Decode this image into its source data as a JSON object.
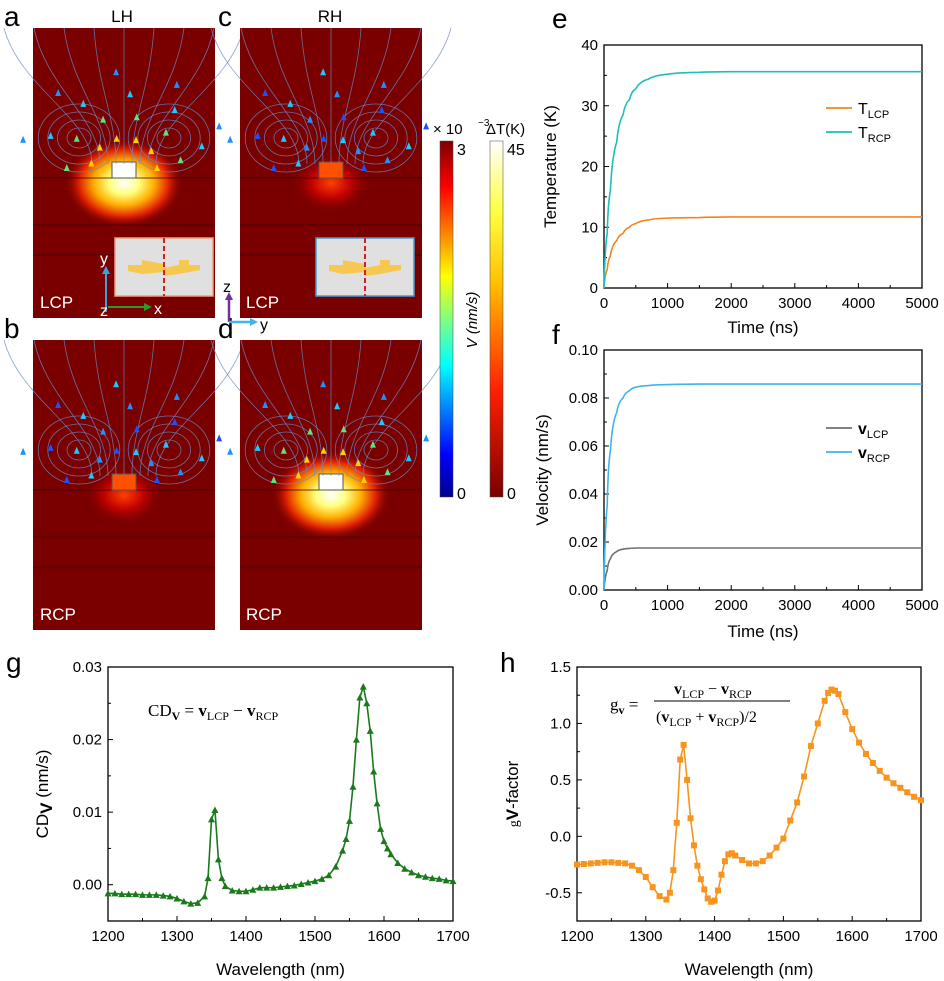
{
  "panels": {
    "a": {
      "letter": "a",
      "column_title": "LH",
      "pol": "LCP"
    },
    "b": {
      "letter": "b",
      "pol": "RCP"
    },
    "c": {
      "letter": "c",
      "column_title": "RH",
      "pol": "LCP"
    },
    "d": {
      "letter": "d",
      "pol": "RCP"
    },
    "axes_a": {
      "y": "y",
      "z": "z",
      "x": "x"
    },
    "axes_c": {
      "z": "z",
      "y": "y"
    }
  },
  "colorbars": {
    "velocity": {
      "scale": "× 10",
      "exp": "−3",
      "max": "3",
      "min": "0",
      "label": "V (nm/s)"
    },
    "temperature": {
      "title": "ΔT(K)",
      "max": "45",
      "min": "0"
    }
  },
  "colors": {
    "lcp_e": "#f28522",
    "rcp_e": "#1fbfb8",
    "lcp_f": "#707070",
    "rcp_f": "#3fb4ea",
    "g": "#1a7a1a",
    "h": "#f7941d",
    "field_bg": "#7a0000"
  },
  "chart_data": [
    {
      "id": "e",
      "letter": "e",
      "type": "line",
      "xlabel": "Time (ns)",
      "ylabel": "Temperature (K)",
      "xlim": [
        0,
        5000
      ],
      "ylim": [
        0,
        40
      ],
      "xticks": [
        "0",
        "1000",
        "2000",
        "3000",
        "4000",
        "5000"
      ],
      "yticks": [
        "0",
        "10",
        "20",
        "30",
        "40"
      ],
      "legend_position": "center-right",
      "x": [
        0,
        50,
        100,
        200,
        300,
        400,
        500,
        700,
        1000,
        1500,
        2000,
        3000,
        4000,
        5000
      ],
      "series": [
        {
          "name": "T",
          "sub": "LCP",
          "values": [
            0,
            3,
            5.3,
            7.8,
            9,
            10,
            10.6,
            11.2,
            11.5,
            11.6,
            11.7,
            11.7,
            11.7,
            11.7
          ]
        },
        {
          "name": "T",
          "sub": "RCP",
          "values": [
            0,
            9,
            16,
            24,
            28.5,
            31,
            32.8,
            34.4,
            35.2,
            35.5,
            35.6,
            35.6,
            35.6,
            35.6
          ]
        }
      ]
    },
    {
      "id": "f",
      "letter": "f",
      "type": "line",
      "xlabel": "Time (ns)",
      "ylabel": "Velocity (nm/s)",
      "xlim": [
        0,
        5000
      ],
      "ylim": [
        0,
        0.1
      ],
      "xticks": [
        "0",
        "1000",
        "2000",
        "3000",
        "4000",
        "5000"
      ],
      "yticks": [
        "0.00",
        "0.02",
        "0.04",
        "0.06",
        "0.08",
        "0.10"
      ],
      "legend_position": "center-right",
      "x": [
        0,
        50,
        100,
        200,
        300,
        400,
        500,
        700,
        1000,
        1500,
        2000,
        3000,
        4000,
        5000
      ],
      "series": [
        {
          "name": "v",
          "sub": "LCP",
          "values": [
            0,
            0.008,
            0.013,
            0.016,
            0.017,
            0.0173,
            0.0175,
            0.0175,
            0.0175,
            0.0175,
            0.0175,
            0.0175,
            0.0175,
            0.0175
          ]
        },
        {
          "name": "v",
          "sub": "RCP",
          "values": [
            0,
            0.035,
            0.058,
            0.074,
            0.08,
            0.083,
            0.0845,
            0.0852,
            0.0856,
            0.0858,
            0.0858,
            0.0858,
            0.0858,
            0.0858
          ]
        }
      ]
    },
    {
      "id": "g",
      "letter": "g",
      "type": "line",
      "xlabel": "Wavelength (nm)",
      "ylabel": "CD",
      "ylabel_sub": "V",
      "ylabel_unit": " (nm/s)",
      "xlim": [
        1200,
        1700
      ],
      "ylim": [
        -0.005,
        0.03
      ],
      "xticks": [
        "1200",
        "1300",
        "1400",
        "1500",
        "1600",
        "1700"
      ],
      "yticks": [
        "0.00",
        "0.01",
        "0.02",
        "0.03"
      ],
      "formula": {
        "lhs": "CD",
        "lhs_sub": "V",
        "eq": " = ",
        "a": "v",
        "a_sub": "LCP",
        "minus": " − ",
        "b": "v",
        "b_sub": "RCP"
      },
      "x": [
        1200,
        1210,
        1220,
        1230,
        1240,
        1250,
        1260,
        1270,
        1280,
        1290,
        1300,
        1310,
        1320,
        1330,
        1340,
        1345,
        1350,
        1355,
        1360,
        1365,
        1370,
        1380,
        1390,
        1400,
        1410,
        1420,
        1430,
        1440,
        1450,
        1460,
        1470,
        1480,
        1490,
        1500,
        1510,
        1520,
        1530,
        1540,
        1545,
        1550,
        1555,
        1560,
        1565,
        1570,
        1575,
        1580,
        1585,
        1590,
        1595,
        1600,
        1605,
        1610,
        1620,
        1630,
        1640,
        1650,
        1660,
        1670,
        1680,
        1690,
        1700
      ],
      "series": [
        {
          "name": "CDv",
          "values": [
            -0.0012,
            -0.0012,
            -0.0013,
            -0.0013,
            -0.0013,
            -0.0014,
            -0.0014,
            -0.0014,
            -0.0015,
            -0.0016,
            -0.0019,
            -0.0023,
            -0.0026,
            -0.0025,
            -0.0016,
            0.0009,
            0.009,
            0.0103,
            0.0035,
            0.0009,
            -0.0002,
            -0.0008,
            -0.0009,
            -0.0009,
            -0.0007,
            -0.0004,
            -0.0004,
            -0.0004,
            -0.0003,
            -0.0002,
            -0.0001,
            0.0001,
            0.0003,
            0.0005,
            0.0008,
            0.0013,
            0.0025,
            0.0047,
            0.0063,
            0.0088,
            0.0135,
            0.02,
            0.0258,
            0.0273,
            0.025,
            0.0212,
            0.0156,
            0.0112,
            0.0077,
            0.006,
            0.005,
            0.0042,
            0.003,
            0.0022,
            0.0017,
            0.0013,
            0.0011,
            0.0009,
            0.0008,
            0.0006,
            0.0005
          ]
        }
      ]
    },
    {
      "id": "h",
      "letter": "h",
      "type": "line",
      "xlabel": "Wavelength (nm)",
      "ylabel": "g",
      "ylabel_sub": "V",
      "ylabel_unit": "-factor",
      "xlim": [
        1200,
        1700
      ],
      "ylim": [
        -0.75,
        1.5
      ],
      "xticks": [
        "1200",
        "1300",
        "1400",
        "1500",
        "1600",
        "1700"
      ],
      "yticks": [
        "-0.5",
        "0.0",
        "0.5",
        "1.0",
        "1.5"
      ],
      "formula": {
        "lhs": "g",
        "lhs_sub": "v",
        "eq": " = ",
        "num_a": "v",
        "num_a_sub": "LCP",
        "num_minus": " − ",
        "num_b": "v",
        "num_b_sub": "RCP",
        "den_open": "(",
        "den_a": "v",
        "den_a_sub": "LCP",
        "den_plus": " + ",
        "den_b": "v",
        "den_b_sub": "RCP",
        "den_close": ")/2"
      },
      "x": [
        1200,
        1210,
        1220,
        1230,
        1240,
        1250,
        1260,
        1270,
        1280,
        1290,
        1300,
        1310,
        1320,
        1330,
        1335,
        1340,
        1345,
        1350,
        1355,
        1360,
        1365,
        1370,
        1375,
        1380,
        1385,
        1390,
        1395,
        1400,
        1405,
        1410,
        1415,
        1420,
        1425,
        1430,
        1440,
        1450,
        1460,
        1470,
        1480,
        1490,
        1500,
        1510,
        1520,
        1530,
        1540,
        1550,
        1560,
        1565,
        1570,
        1575,
        1580,
        1590,
        1600,
        1610,
        1620,
        1630,
        1640,
        1650,
        1660,
        1670,
        1680,
        1690,
        1700
      ],
      "series": [
        {
          "name": "gv",
          "values": [
            -0.25,
            -0.245,
            -0.24,
            -0.235,
            -0.23,
            -0.23,
            -0.235,
            -0.24,
            -0.26,
            -0.3,
            -0.36,
            -0.45,
            -0.53,
            -0.56,
            -0.5,
            -0.3,
            0.12,
            0.68,
            0.81,
            0.5,
            0.16,
            -0.08,
            -0.26,
            -0.38,
            -0.47,
            -0.55,
            -0.58,
            -0.57,
            -0.48,
            -0.34,
            -0.22,
            -0.16,
            -0.15,
            -0.17,
            -0.21,
            -0.24,
            -0.24,
            -0.22,
            -0.17,
            -0.1,
            -0.02,
            0.14,
            0.3,
            0.53,
            0.8,
            1.0,
            1.2,
            1.27,
            1.3,
            1.29,
            1.26,
            1.1,
            0.95,
            0.83,
            0.73,
            0.65,
            0.58,
            0.52,
            0.47,
            0.43,
            0.39,
            0.35,
            0.32
          ]
        }
      ]
    }
  ]
}
